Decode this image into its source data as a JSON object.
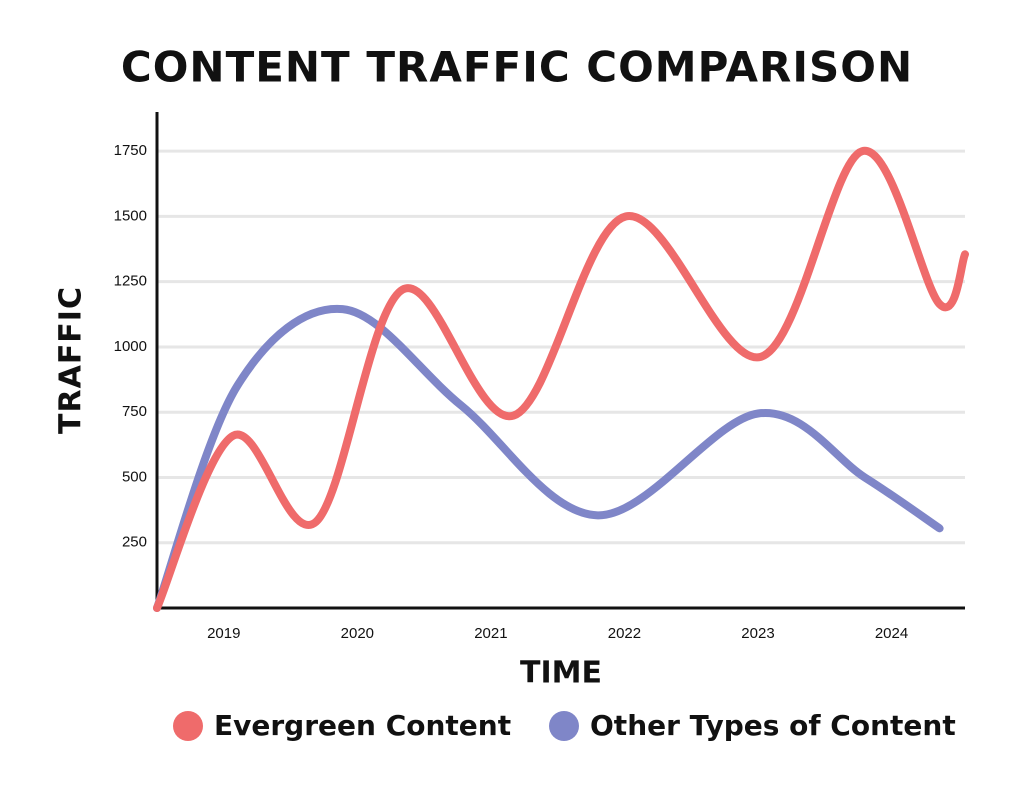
{
  "chart_data": {
    "type": "line",
    "title": "CONTENT TRAFFIC COMPARISON",
    "x_label": "TIME",
    "y_label": "TRAFFIC",
    "xlim": [
      2018.5,
      2024.55
    ],
    "xticks": [
      2019,
      2020,
      2021,
      2022,
      2023,
      2024
    ],
    "ylim": [
      0,
      1900
    ],
    "yticks": [
      250,
      500,
      750,
      1000,
      1250,
      1500,
      1750
    ],
    "grid": true,
    "legend": "bottom",
    "series": [
      {
        "name": "Evergreen Content",
        "color": "#ef6b6b",
        "x": [
          2018.5,
          2019.07,
          2019.69,
          2020.34,
          2021.17,
          2022.01,
          2023.02,
          2023.78,
          2024.36,
          2024.55
        ],
        "values": [
          0,
          660,
          330,
          1220,
          737,
          1500,
          962,
          1750,
          1164,
          1355
        ]
      },
      {
        "name": "Other Types of Content",
        "color": "#7f86c8",
        "x": [
          2018.5,
          2019.1,
          2019.89,
          2020.78,
          2021.8,
          2023.0,
          2023.8,
          2024.36
        ],
        "values": [
          0,
          850,
          1145,
          775,
          355,
          745,
          500,
          305
        ]
      }
    ]
  }
}
